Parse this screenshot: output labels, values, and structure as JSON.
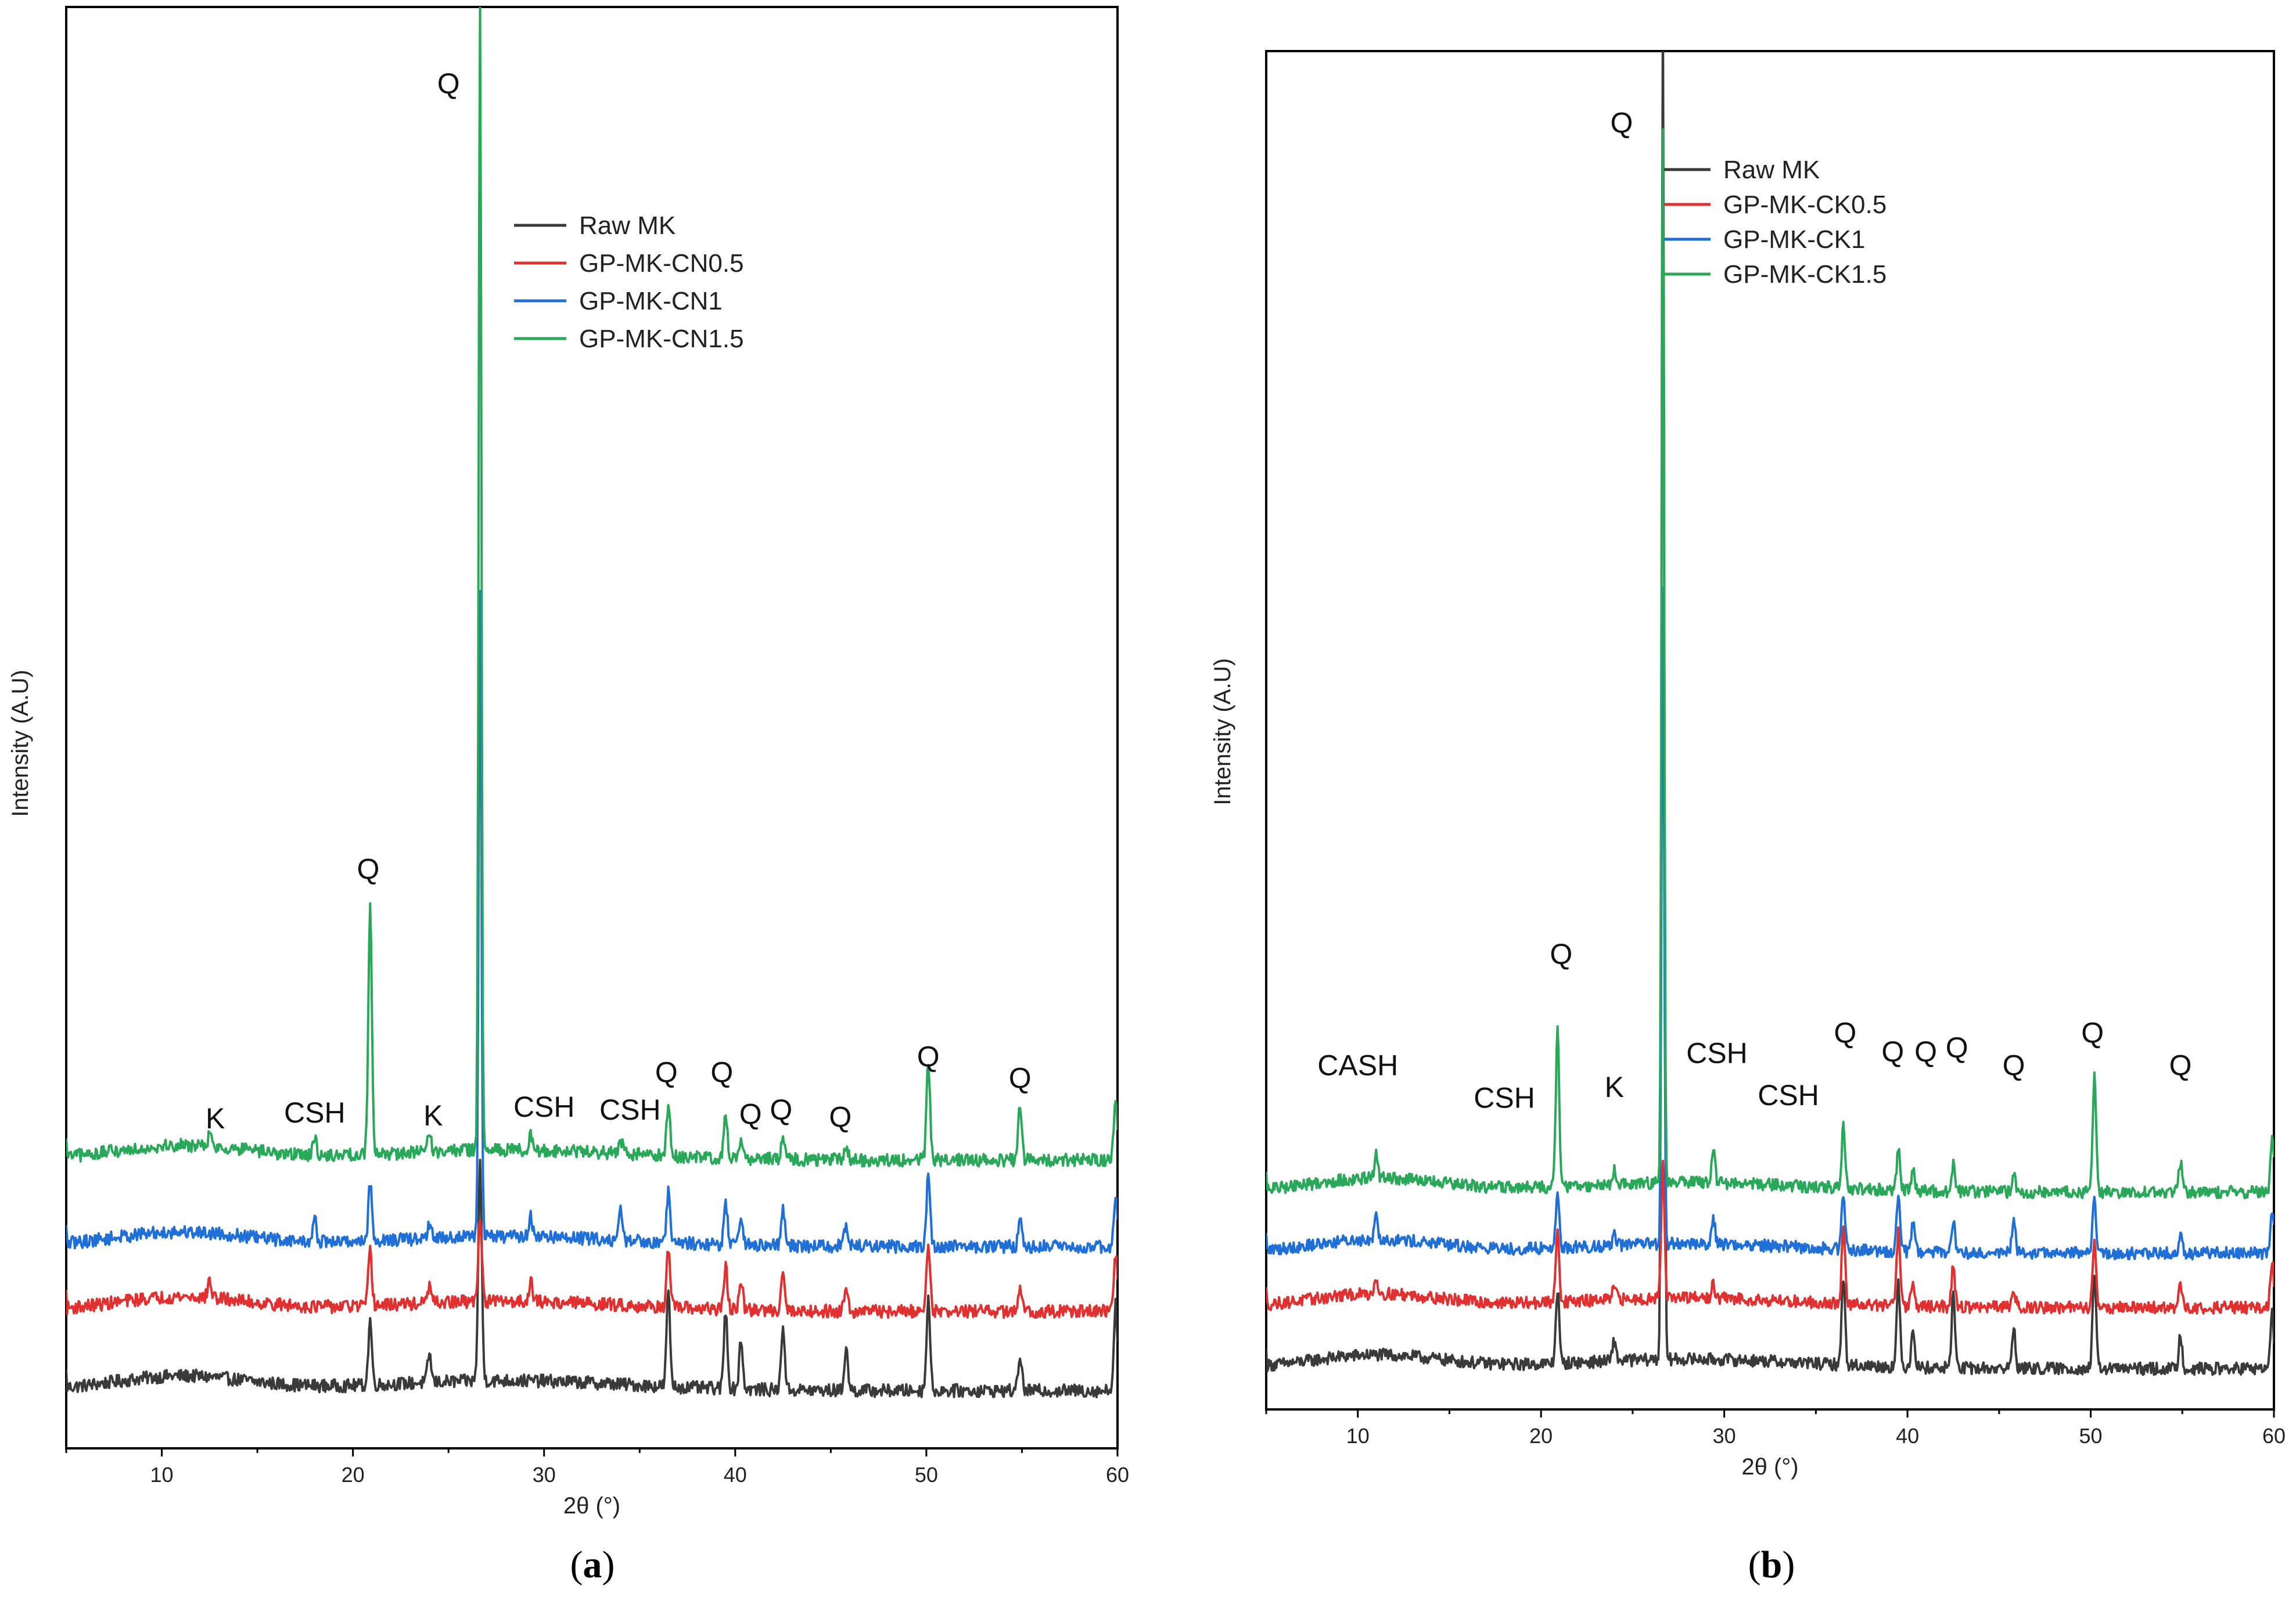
{
  "colors": {
    "Raw MK": "#3a3a3a",
    "red": "#e03030",
    "blue": "#1f6fd6",
    "green": "#2aa85a"
  },
  "chart_data": [
    {
      "type": "line",
      "panel": "(a)",
      "panel_open": "(",
      "panel_letter": "a",
      "panel_close": ")",
      "xlabel": "2θ (°)",
      "ylabel": "Intensity (A.U)",
      "xlim": [
        5,
        60
      ],
      "ylim": [
        0,
        100
      ],
      "xticks": [
        10,
        20,
        30,
        40,
        50,
        60
      ],
      "legend": [
        "Raw MK",
        "GP-MK-CN0.5",
        "GP-MK-CN1",
        "GP-MK-CN1.5"
      ],
      "series": [
        {
          "name": "Raw MK",
          "color": "#3a3a3a",
          "offset": 4,
          "peaks": [
            [
              20.9,
              4.5
            ],
            [
              24.0,
              2.0
            ],
            [
              26.65,
              15.0
            ],
            [
              36.5,
              6.5
            ],
            [
              39.5,
              5.5
            ],
            [
              40.3,
              3.5
            ],
            [
              42.5,
              4.5
            ],
            [
              45.8,
              3.0
            ],
            [
              50.1,
              6.5
            ],
            [
              54.9,
              2.5
            ],
            [
              59.9,
              6.0
            ]
          ]
        },
        {
          "name": "GP-MK-CN0.5",
          "color": "#e03030",
          "offset": 9.5,
          "peaks": [
            [
              12.5,
              1.2
            ],
            [
              20.9,
              3.8
            ],
            [
              24.0,
              1.2
            ],
            [
              26.65,
              6.0
            ],
            [
              29.3,
              1.5
            ],
            [
              36.5,
              4.0
            ],
            [
              39.5,
              3.0
            ],
            [
              40.3,
              2.0
            ],
            [
              42.5,
              3.0
            ],
            [
              45.8,
              2.0
            ],
            [
              50.1,
              5.0
            ],
            [
              54.9,
              1.5
            ],
            [
              59.9,
              4.0
            ]
          ]
        },
        {
          "name": "GP-MK-CN1",
          "color": "#1f6fd6",
          "offset": 14,
          "peaks": [
            [
              18.0,
              1.5
            ],
            [
              20.9,
              4.0
            ],
            [
              24.0,
              1.0
            ],
            [
              26.65,
              45.0
            ],
            [
              29.3,
              1.5
            ],
            [
              34.0,
              2.0
            ],
            [
              36.5,
              3.5
            ],
            [
              39.5,
              3.0
            ],
            [
              40.3,
              2.0
            ],
            [
              42.5,
              2.5
            ],
            [
              45.8,
              1.5
            ],
            [
              50.1,
              5.0
            ],
            [
              54.9,
              2.0
            ],
            [
              59.9,
              3.5
            ]
          ]
        },
        {
          "name": "GP-MK-CN1.5",
          "color": "#2aa85a",
          "offset": 20,
          "peaks": [
            [
              12.5,
              0.8
            ],
            [
              18.0,
              1.2
            ],
            [
              20.9,
              17.5
            ],
            [
              24.0,
              1.2
            ],
            [
              26.65,
              80.0
            ],
            [
              29.3,
              1.0
            ],
            [
              34.0,
              1.0
            ],
            [
              36.5,
              3.5
            ],
            [
              39.5,
              3.0
            ],
            [
              40.3,
              1.5
            ],
            [
              42.5,
              1.5
            ],
            [
              45.8,
              1.0
            ],
            [
              50.1,
              7.0
            ],
            [
              54.9,
              4.0
            ],
            [
              59.9,
              4.0
            ]
          ]
        }
      ],
      "annotations": [
        {
          "text": "Q",
          "x": 25.0,
          "y": 94
        },
        {
          "text": "Q",
          "x": 20.8,
          "y": 39.5
        },
        {
          "text": "K",
          "x": 12.8,
          "y": 22.2
        },
        {
          "text": "CSH",
          "x": 18.0,
          "y": 22.6
        },
        {
          "text": "K",
          "x": 24.2,
          "y": 22.4
        },
        {
          "text": "CSH",
          "x": 30.0,
          "y": 23.0
        },
        {
          "text": "CSH",
          "x": 34.5,
          "y": 22.8
        },
        {
          "text": "Q",
          "x": 36.4,
          "y": 25.4
        },
        {
          "text": "Q",
          "x": 39.3,
          "y": 25.4
        },
        {
          "text": "Q",
          "x": 40.8,
          "y": 22.5
        },
        {
          "text": "Q",
          "x": 42.4,
          "y": 22.8
        },
        {
          "text": "Q",
          "x": 45.5,
          "y": 22.3
        },
        {
          "text": "Q",
          "x": 50.1,
          "y": 26.5
        },
        {
          "text": "Q",
          "x": 54.9,
          "y": 25.0
        }
      ]
    },
    {
      "type": "line",
      "panel": "(b)",
      "panel_open": "(",
      "panel_letter": "b",
      "panel_close": ")",
      "xlabel": "2θ (°)",
      "ylabel": "Intensity (A.U)",
      "xlim": [
        5,
        60
      ],
      "ylim": [
        0,
        100
      ],
      "xticks": [
        10,
        20,
        30,
        40,
        50,
        60
      ],
      "legend": [
        "Raw MK",
        "GP-MK-CK0.5",
        "GP-MK-CK1",
        "GP-MK-CK1.5"
      ],
      "series": [
        {
          "name": "Raw MK",
          "color": "#3a3a3a",
          "offset": 3,
          "peaks": [
            [
              20.9,
              5.5
            ],
            [
              24.0,
              1.5
            ],
            [
              26.65,
              100.0
            ],
            [
              36.5,
              6.5
            ],
            [
              39.5,
              6.0
            ],
            [
              40.3,
              3.0
            ],
            [
              42.5,
              5.5
            ],
            [
              45.8,
              3.0
            ],
            [
              50.2,
              7.0
            ],
            [
              54.9,
              2.5
            ],
            [
              59.9,
              4.0
            ]
          ]
        },
        {
          "name": "GP-MK-CK0.5",
          "color": "#e03030",
          "offset": 7.5,
          "peaks": [
            [
              11.0,
              1.2
            ],
            [
              20.9,
              5.5
            ],
            [
              24.0,
              1.0
            ],
            [
              26.65,
              10.0
            ],
            [
              29.4,
              1.0
            ],
            [
              36.5,
              5.5
            ],
            [
              39.5,
              5.5
            ],
            [
              40.3,
              2.0
            ],
            [
              42.5,
              3.0
            ],
            [
              45.8,
              1.5
            ],
            [
              50.2,
              5.0
            ],
            [
              54.9,
              1.5
            ],
            [
              59.9,
              3.5
            ]
          ]
        },
        {
          "name": "GP-MK-CK1",
          "color": "#1f6fd6",
          "offset": 11.5,
          "peaks": [
            [
              11.0,
              2.0
            ],
            [
              20.9,
              4.0
            ],
            [
              24.0,
              1.0
            ],
            [
              26.65,
              48.0
            ],
            [
              29.4,
              2.0
            ],
            [
              36.5,
              4.0
            ],
            [
              39.5,
              4.0
            ],
            [
              40.3,
              2.0
            ],
            [
              42.5,
              2.5
            ],
            [
              45.8,
              2.5
            ],
            [
              50.2,
              4.0
            ],
            [
              54.9,
              1.5
            ],
            [
              59.9,
              3.0
            ]
          ]
        },
        {
          "name": "GP-MK-CK1.5",
          "color": "#2aa85a",
          "offset": 16,
          "peaks": [
            [
              11.0,
              1.8
            ],
            [
              20.9,
              11.5
            ],
            [
              24.0,
              1.0
            ],
            [
              26.65,
              78.0
            ],
            [
              29.4,
              2.5
            ],
            [
              36.5,
              4.5
            ],
            [
              39.5,
              3.0
            ],
            [
              40.3,
              1.5
            ],
            [
              42.5,
              2.0
            ],
            [
              45.8,
              1.5
            ],
            [
              50.2,
              8.5
            ],
            [
              54.9,
              2.2
            ],
            [
              59.9,
              4.0
            ]
          ]
        }
      ],
      "annotations": [
        {
          "text": "Q",
          "x": 24.4,
          "y": 94
        },
        {
          "text": "Q",
          "x": 21.1,
          "y": 32.8
        },
        {
          "text": "CASH",
          "x": 10.0,
          "y": 24.6
        },
        {
          "text": "CSH",
          "x": 18.0,
          "y": 22.2
        },
        {
          "text": "K",
          "x": 24.0,
          "y": 23.0
        },
        {
          "text": "CSH",
          "x": 29.6,
          "y": 25.5
        },
        {
          "text": "CSH",
          "x": 33.5,
          "y": 22.4
        },
        {
          "text": "Q",
          "x": 36.6,
          "y": 27.0
        },
        {
          "text": "Q",
          "x": 39.2,
          "y": 25.6
        },
        {
          "text": "Q",
          "x": 41.0,
          "y": 25.6
        },
        {
          "text": "Q",
          "x": 42.7,
          "y": 25.9
        },
        {
          "text": "Q",
          "x": 45.8,
          "y": 24.6
        },
        {
          "text": "Q",
          "x": 50.1,
          "y": 27.0
        },
        {
          "text": "Q",
          "x": 54.9,
          "y": 24.6
        }
      ]
    }
  ]
}
